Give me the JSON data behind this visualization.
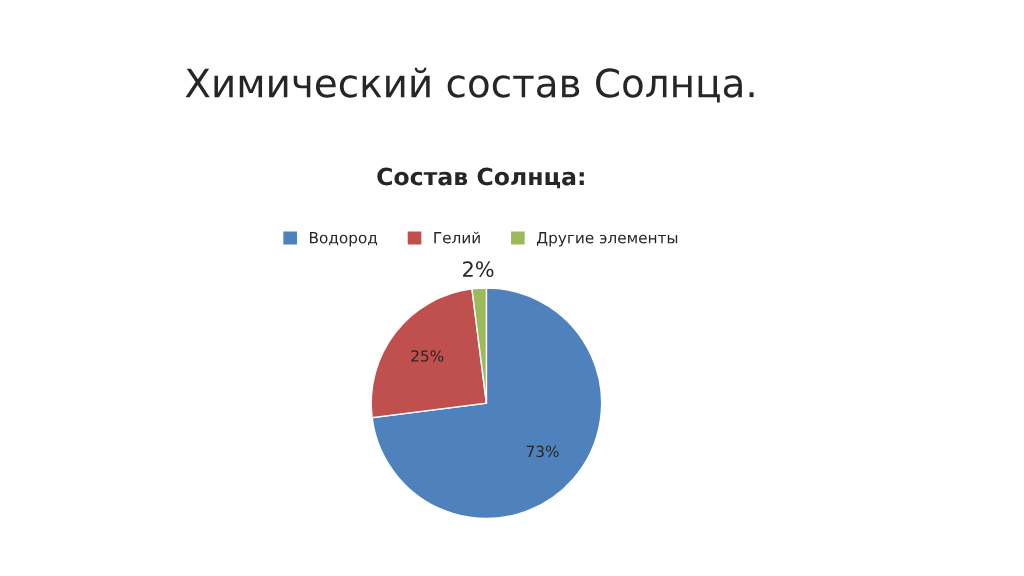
{
  "chart_data": {
    "type": "pie",
    "title": "Химический состав Солнца.",
    "subtitle": "Состав Солнца:",
    "categories": [
      "Водород",
      "Гелий",
      "Другие элементы"
    ],
    "values": [
      73,
      25,
      2
    ],
    "colors": [
      "#4f81bd",
      "#c0504d",
      "#9bbb59"
    ],
    "value_labels": [
      "73%",
      "25%",
      "2%"
    ],
    "legend": "top"
  }
}
